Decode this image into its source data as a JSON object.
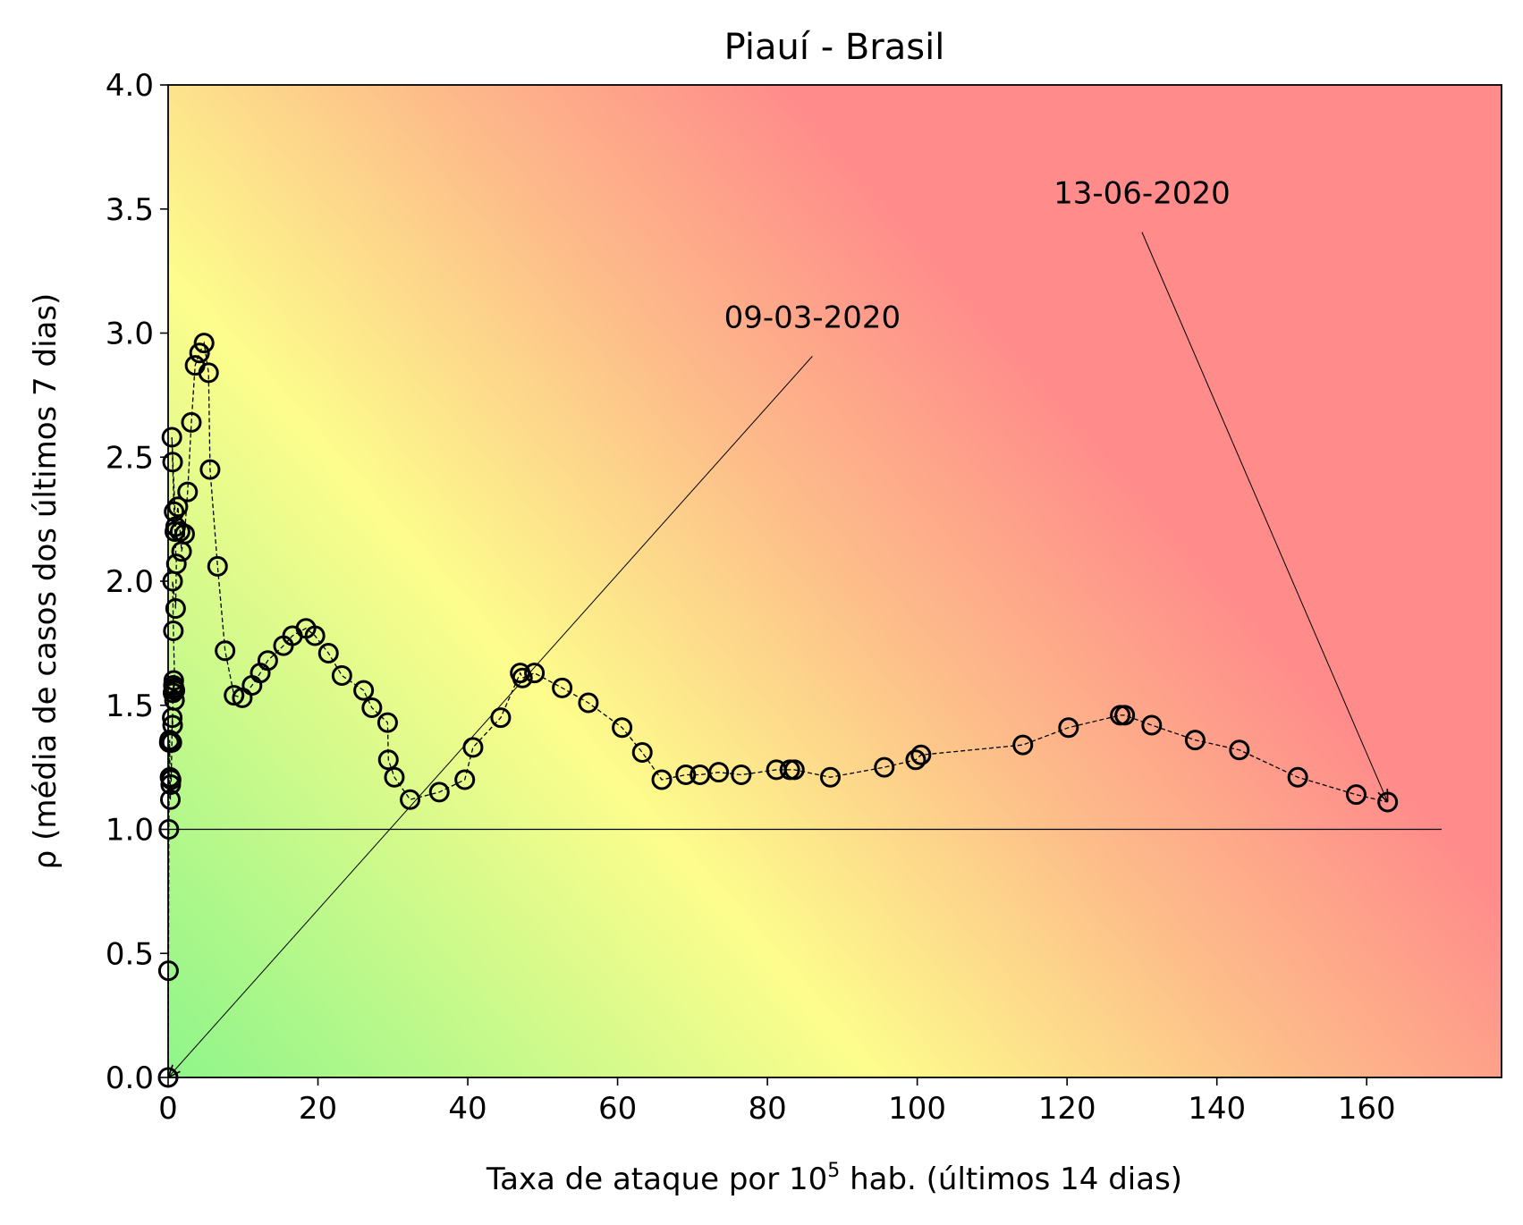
{
  "chart_data": {
    "type": "scatter",
    "title": "Piauí - Brasil",
    "xlabel": {
      "prefix": "Taxa de ataque por 10",
      "superscript": "5",
      "suffix": " hab. (últimos 14 dias)"
    },
    "ylabel": "ρ (média de casos dos últimos 7 dias)",
    "xlim": [
      0,
      178
    ],
    "ylim": [
      0,
      4.0
    ],
    "xticks": [
      "0",
      "20",
      "40",
      "60",
      "80",
      "100",
      "120",
      "140",
      "160"
    ],
    "yticks": [
      "0.0",
      "0.5",
      "1.0",
      "1.5",
      "2.0",
      "2.5",
      "3.0",
      "3.5",
      "4.0"
    ],
    "grid": false,
    "background": "risk gradient: green (low rate, low ρ) → yellow → red (high rate, high ρ)",
    "colors": {
      "green": "#8ff58a",
      "yellow": "#fdfd8c",
      "orange": "#fdbb8a",
      "red": "#ff8b8b",
      "marker_edge": "#000000"
    },
    "reference_line": {
      "y": 1.0,
      "x_from": 0,
      "x_to": 170
    },
    "series": [
      {
        "marker": "open circle",
        "line": "dashed",
        "points": [
          [
            0.0,
            0.0
          ],
          [
            0.05,
            0.43
          ],
          [
            0.1,
            1.0
          ],
          [
            0.15,
            1.35
          ],
          [
            0.2,
            1.36
          ],
          [
            0.25,
            1.21
          ],
          [
            0.3,
            1.12
          ],
          [
            0.35,
            1.18
          ],
          [
            0.4,
            1.2
          ],
          [
            0.5,
            1.35
          ],
          [
            0.55,
            1.45
          ],
          [
            0.6,
            1.42
          ],
          [
            0.65,
            1.55
          ],
          [
            0.7,
            1.58
          ],
          [
            0.75,
            1.6
          ],
          [
            0.8,
            1.57
          ],
          [
            0.85,
            1.52
          ],
          [
            0.9,
            1.56
          ],
          [
            0.7,
            1.8
          ],
          [
            0.6,
            2.0
          ],
          [
            1.0,
            1.89
          ],
          [
            1.1,
            2.07
          ],
          [
            0.9,
            2.2
          ],
          [
            0.8,
            2.28
          ],
          [
            0.6,
            2.48
          ],
          [
            0.5,
            2.58
          ],
          [
            1.0,
            2.22
          ],
          [
            1.3,
            2.3
          ],
          [
            1.6,
            2.2
          ],
          [
            1.8,
            2.12
          ],
          [
            2.2,
            2.19
          ],
          [
            2.6,
            2.36
          ],
          [
            3.1,
            2.64
          ],
          [
            3.6,
            2.87
          ],
          [
            4.2,
            2.92
          ],
          [
            4.8,
            2.96
          ],
          [
            5.4,
            2.84
          ],
          [
            5.6,
            2.45
          ],
          [
            6.6,
            2.06
          ],
          [
            7.6,
            1.72
          ],
          [
            8.8,
            1.54
          ],
          [
            9.9,
            1.53
          ],
          [
            11.2,
            1.58
          ],
          [
            12.3,
            1.63
          ],
          [
            13.3,
            1.68
          ],
          [
            15.4,
            1.74
          ],
          [
            16.6,
            1.78
          ],
          [
            18.4,
            1.81
          ],
          [
            19.6,
            1.78
          ],
          [
            21.4,
            1.71
          ],
          [
            23.2,
            1.62
          ],
          [
            26.1,
            1.56
          ],
          [
            27.2,
            1.49
          ],
          [
            29.3,
            1.43
          ],
          [
            29.4,
            1.28
          ],
          [
            30.2,
            1.21
          ],
          [
            32.3,
            1.12
          ],
          [
            36.2,
            1.15
          ],
          [
            39.6,
            1.2
          ],
          [
            40.7,
            1.33
          ],
          [
            44.4,
            1.45
          ],
          [
            47.0,
            1.63
          ],
          [
            47.3,
            1.61
          ],
          [
            48.9,
            1.63
          ],
          [
            52.6,
            1.57
          ],
          [
            56.1,
            1.51
          ],
          [
            60.6,
            1.41
          ],
          [
            63.3,
            1.31
          ],
          [
            65.9,
            1.2
          ],
          [
            69.1,
            1.22
          ],
          [
            71.0,
            1.22
          ],
          [
            73.5,
            1.23
          ],
          [
            76.5,
            1.22
          ],
          [
            81.2,
            1.24
          ],
          [
            83.0,
            1.24
          ],
          [
            83.6,
            1.24
          ],
          [
            88.4,
            1.21
          ],
          [
            95.6,
            1.25
          ],
          [
            99.8,
            1.28
          ],
          [
            100.5,
            1.3
          ],
          [
            114.1,
            1.34
          ],
          [
            120.2,
            1.41
          ],
          [
            127.1,
            1.46
          ],
          [
            127.7,
            1.46
          ],
          [
            131.3,
            1.42
          ],
          [
            137.1,
            1.36
          ],
          [
            143.0,
            1.32
          ],
          [
            150.8,
            1.21
          ],
          [
            158.6,
            1.14
          ],
          [
            162.8,
            1.11
          ]
        ]
      }
    ],
    "annotations": [
      {
        "text": "09-03-2020",
        "point": [
          0.0,
          0.0
        ],
        "text_anchor": [
          86,
          2.95
        ]
      },
      {
        "text": "13-06-2020",
        "point": [
          162.8,
          1.11
        ],
        "text_anchor": [
          130,
          3.45
        ]
      }
    ]
  }
}
